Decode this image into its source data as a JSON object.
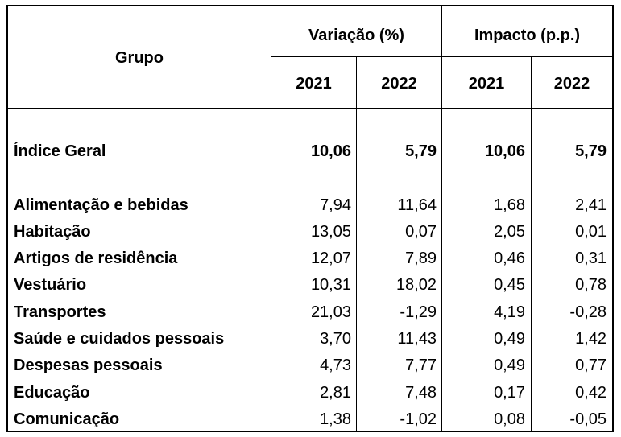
{
  "header": {
    "group_label": "Grupo",
    "variacao_label": "Variação (%)",
    "impacto_label": "Impacto (p.p.)",
    "years": [
      "2021",
      "2022",
      "2021",
      "2022"
    ]
  },
  "total_row": {
    "label": "Índice Geral",
    "values": [
      "10,06",
      "5,79",
      "10,06",
      "5,79"
    ]
  },
  "rows": [
    {
      "label": "Alimentação e bebidas",
      "values": [
        "7,94",
        "11,64",
        "1,68",
        "2,41"
      ]
    },
    {
      "label": "Habitação",
      "values": [
        "13,05",
        "0,07",
        "2,05",
        "0,01"
      ]
    },
    {
      "label": "Artigos de residência",
      "values": [
        "12,07",
        "7,89",
        "0,46",
        "0,31"
      ]
    },
    {
      "label": "Vestuário",
      "values": [
        "10,31",
        "18,02",
        "0,45",
        "0,78"
      ]
    },
    {
      "label": "Transportes",
      "values": [
        "21,03",
        "-1,29",
        "4,19",
        "-0,28"
      ]
    },
    {
      "label": "Saúde e cuidados pessoais",
      "values": [
        "3,70",
        "11,43",
        "0,49",
        "1,42"
      ]
    },
    {
      "label": "Despesas pessoais",
      "values": [
        "4,73",
        "7,77",
        "0,49",
        "0,77"
      ]
    },
    {
      "label": "Educação",
      "values": [
        "2,81",
        "7,48",
        "0,17",
        "0,42"
      ]
    },
    {
      "label": "Comunicação",
      "values": [
        "1,38",
        "-1,02",
        "0,08",
        "-0,05"
      ]
    }
  ]
}
